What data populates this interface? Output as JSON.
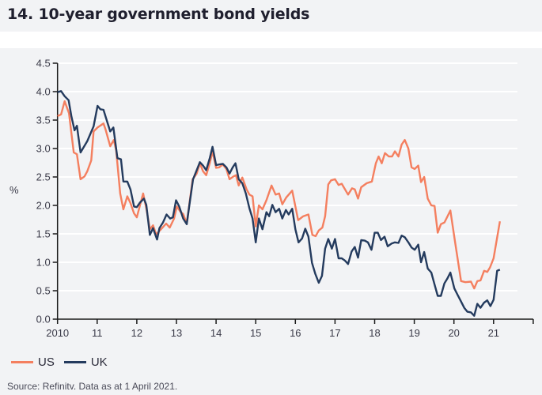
{
  "header": {
    "title": "14. 10-year government bond yields"
  },
  "source": "Source: Refinitv. Data as at 1 April 2021.",
  "chart_data": {
    "type": "line",
    "title": "",
    "ylabel": "%",
    "xlabel": "",
    "xlim": [
      2010,
      2022
    ],
    "ylim": [
      0,
      4.5
    ],
    "yticks": [
      "0.0",
      "0.5",
      "1.0",
      "1.5",
      "2.0",
      "2.5",
      "3.0",
      "3.5",
      "4.0",
      "4.5"
    ],
    "xtick_labels": [
      "2010",
      "11",
      "12",
      "13",
      "14",
      "15",
      "16",
      "17",
      "18",
      "19",
      "20",
      "21"
    ],
    "grid": "horizontal",
    "legend_position": "bottom-left",
    "series": [
      {
        "name": "US",
        "color": "#f47f5f",
        "points": [
          [
            2010.0,
            3.57
          ],
          [
            2010.09,
            3.6
          ],
          [
            2010.18,
            3.83
          ],
          [
            2010.29,
            3.62
          ],
          [
            2010.41,
            2.93
          ],
          [
            2010.49,
            2.9
          ],
          [
            2010.58,
            2.46
          ],
          [
            2010.68,
            2.51
          ],
          [
            2010.75,
            2.6
          ],
          [
            2010.85,
            2.79
          ],
          [
            2010.91,
            3.3
          ],
          [
            2011.01,
            3.37
          ],
          [
            2011.16,
            3.44
          ],
          [
            2011.21,
            3.34
          ],
          [
            2011.33,
            3.04
          ],
          [
            2011.42,
            3.15
          ],
          [
            2011.48,
            2.97
          ],
          [
            2011.58,
            2.21
          ],
          [
            2011.66,
            1.93
          ],
          [
            2011.76,
            2.16
          ],
          [
            2011.84,
            2.04
          ],
          [
            2011.93,
            1.86
          ],
          [
            2012.0,
            1.79
          ],
          [
            2012.08,
            2.0
          ],
          [
            2012.16,
            2.21
          ],
          [
            2012.24,
            1.95
          ],
          [
            2012.33,
            1.58
          ],
          [
            2012.41,
            1.65
          ],
          [
            2012.49,
            1.49
          ],
          [
            2012.61,
            1.58
          ],
          [
            2012.74,
            1.68
          ],
          [
            2012.83,
            1.61
          ],
          [
            2012.94,
            1.77
          ],
          [
            2013.01,
            1.98
          ],
          [
            2013.11,
            1.88
          ],
          [
            2013.17,
            1.85
          ],
          [
            2013.26,
            1.68
          ],
          [
            2013.41,
            2.46
          ],
          [
            2013.51,
            2.56
          ],
          [
            2013.59,
            2.74
          ],
          [
            2013.67,
            2.6
          ],
          [
            2013.75,
            2.53
          ],
          [
            2013.84,
            2.74
          ],
          [
            2013.91,
            2.95
          ],
          [
            2014.0,
            2.66
          ],
          [
            2014.08,
            2.67
          ],
          [
            2014.17,
            2.72
          ],
          [
            2014.26,
            2.64
          ],
          [
            2014.34,
            2.46
          ],
          [
            2014.44,
            2.51
          ],
          [
            2014.5,
            2.53
          ],
          [
            2014.57,
            2.35
          ],
          [
            2014.66,
            2.49
          ],
          [
            2014.77,
            2.28
          ],
          [
            2014.84,
            2.19
          ],
          [
            2014.92,
            2.16
          ],
          [
            2015.0,
            1.63
          ],
          [
            2015.08,
            2.0
          ],
          [
            2015.17,
            1.93
          ],
          [
            2015.27,
            2.09
          ],
          [
            2015.4,
            2.35
          ],
          [
            2015.5,
            2.19
          ],
          [
            2015.59,
            2.21
          ],
          [
            2015.67,
            2.02
          ],
          [
            2015.77,
            2.14
          ],
          [
            2015.92,
            2.26
          ],
          [
            2016.07,
            1.74
          ],
          [
            2016.2,
            1.81
          ],
          [
            2016.33,
            1.84
          ],
          [
            2016.43,
            1.48
          ],
          [
            2016.51,
            1.46
          ],
          [
            2016.59,
            1.56
          ],
          [
            2016.68,
            1.61
          ],
          [
            2016.75,
            1.81
          ],
          [
            2016.83,
            2.37
          ],
          [
            2016.9,
            2.44
          ],
          [
            2017.0,
            2.46
          ],
          [
            2017.09,
            2.36
          ],
          [
            2017.17,
            2.38
          ],
          [
            2017.33,
            2.19
          ],
          [
            2017.43,
            2.3
          ],
          [
            2017.5,
            2.28
          ],
          [
            2017.58,
            2.12
          ],
          [
            2017.66,
            2.32
          ],
          [
            2017.8,
            2.39
          ],
          [
            2017.93,
            2.42
          ],
          [
            2018.03,
            2.74
          ],
          [
            2018.1,
            2.86
          ],
          [
            2018.18,
            2.74
          ],
          [
            2018.26,
            2.92
          ],
          [
            2018.36,
            2.86
          ],
          [
            2018.44,
            2.86
          ],
          [
            2018.51,
            2.95
          ],
          [
            2018.6,
            2.86
          ],
          [
            2018.68,
            3.07
          ],
          [
            2018.76,
            3.15
          ],
          [
            2018.85,
            3.0
          ],
          [
            2018.93,
            2.67
          ],
          [
            2019.01,
            2.64
          ],
          [
            2019.1,
            2.7
          ],
          [
            2019.17,
            2.41
          ],
          [
            2019.25,
            2.5
          ],
          [
            2019.34,
            2.12
          ],
          [
            2019.43,
            2.0
          ],
          [
            2019.51,
            1.99
          ],
          [
            2019.59,
            1.52
          ],
          [
            2019.67,
            1.67
          ],
          [
            2019.76,
            1.7
          ],
          [
            2019.91,
            1.91
          ],
          [
            2020.03,
            1.35
          ],
          [
            2020.18,
            0.67
          ],
          [
            2020.29,
            0.65
          ],
          [
            2020.43,
            0.66
          ],
          [
            2020.51,
            0.54
          ],
          [
            2020.59,
            0.67
          ],
          [
            2020.67,
            0.68
          ],
          [
            2020.76,
            0.85
          ],
          [
            2020.84,
            0.83
          ],
          [
            2020.91,
            0.91
          ],
          [
            2021.0,
            1.07
          ],
          [
            2021.16,
            1.72
          ]
        ]
      },
      {
        "name": "UK",
        "color": "#243b5e",
        "points": [
          [
            2010.0,
            3.99
          ],
          [
            2010.09,
            4.01
          ],
          [
            2010.18,
            3.92
          ],
          [
            2010.28,
            3.85
          ],
          [
            2010.35,
            3.57
          ],
          [
            2010.43,
            3.32
          ],
          [
            2010.49,
            3.4
          ],
          [
            2010.58,
            2.93
          ],
          [
            2010.75,
            3.13
          ],
          [
            2010.91,
            3.39
          ],
          [
            2011.01,
            3.75
          ],
          [
            2011.08,
            3.69
          ],
          [
            2011.16,
            3.68
          ],
          [
            2011.24,
            3.5
          ],
          [
            2011.33,
            3.3
          ],
          [
            2011.41,
            3.37
          ],
          [
            2011.51,
            2.83
          ],
          [
            2011.6,
            2.81
          ],
          [
            2011.66,
            2.42
          ],
          [
            2011.76,
            2.42
          ],
          [
            2011.84,
            2.28
          ],
          [
            2011.93,
            1.98
          ],
          [
            2012.0,
            1.97
          ],
          [
            2012.08,
            2.05
          ],
          [
            2012.18,
            2.12
          ],
          [
            2012.24,
            2.01
          ],
          [
            2012.33,
            1.48
          ],
          [
            2012.41,
            1.6
          ],
          [
            2012.51,
            1.4
          ],
          [
            2012.57,
            1.6
          ],
          [
            2012.66,
            1.7
          ],
          [
            2012.75,
            1.84
          ],
          [
            2012.84,
            1.77
          ],
          [
            2012.91,
            1.79
          ],
          [
            2012.99,
            2.09
          ],
          [
            2013.07,
            1.98
          ],
          [
            2013.17,
            1.77
          ],
          [
            2013.26,
            1.67
          ],
          [
            2013.33,
            2.02
          ],
          [
            2013.42,
            2.46
          ],
          [
            2013.51,
            2.62
          ],
          [
            2013.59,
            2.76
          ],
          [
            2013.67,
            2.7
          ],
          [
            2013.75,
            2.62
          ],
          [
            2013.84,
            2.83
          ],
          [
            2013.91,
            3.03
          ],
          [
            2014.0,
            2.71
          ],
          [
            2014.08,
            2.72
          ],
          [
            2014.17,
            2.73
          ],
          [
            2014.26,
            2.67
          ],
          [
            2014.34,
            2.56
          ],
          [
            2014.42,
            2.67
          ],
          [
            2014.49,
            2.74
          ],
          [
            2014.57,
            2.46
          ],
          [
            2014.66,
            2.39
          ],
          [
            2014.75,
            2.21
          ],
          [
            2014.84,
            1.95
          ],
          [
            2014.92,
            1.77
          ],
          [
            2015.0,
            1.35
          ],
          [
            2015.08,
            1.77
          ],
          [
            2015.17,
            1.58
          ],
          [
            2015.27,
            1.88
          ],
          [
            2015.34,
            1.81
          ],
          [
            2015.42,
            2.01
          ],
          [
            2015.5,
            1.88
          ],
          [
            2015.59,
            1.94
          ],
          [
            2015.67,
            1.77
          ],
          [
            2015.76,
            1.92
          ],
          [
            2015.83,
            1.84
          ],
          [
            2015.92,
            1.94
          ],
          [
            2016.0,
            1.58
          ],
          [
            2016.08,
            1.35
          ],
          [
            2016.17,
            1.42
          ],
          [
            2016.25,
            1.59
          ],
          [
            2016.33,
            1.45
          ],
          [
            2016.42,
            0.99
          ],
          [
            2016.5,
            0.8
          ],
          [
            2016.59,
            0.64
          ],
          [
            2016.67,
            0.76
          ],
          [
            2016.75,
            1.24
          ],
          [
            2016.83,
            1.41
          ],
          [
            2016.92,
            1.24
          ],
          [
            2017.0,
            1.41
          ],
          [
            2017.09,
            1.07
          ],
          [
            2017.17,
            1.07
          ],
          [
            2017.25,
            1.03
          ],
          [
            2017.33,
            0.97
          ],
          [
            2017.42,
            1.19
          ],
          [
            2017.5,
            1.27
          ],
          [
            2017.58,
            1.08
          ],
          [
            2017.66,
            1.39
          ],
          [
            2017.75,
            1.38
          ],
          [
            2017.83,
            1.35
          ],
          [
            2017.92,
            1.22
          ],
          [
            2018.0,
            1.52
          ],
          [
            2018.08,
            1.52
          ],
          [
            2018.16,
            1.39
          ],
          [
            2018.25,
            1.45
          ],
          [
            2018.33,
            1.28
          ],
          [
            2018.43,
            1.33
          ],
          [
            2018.51,
            1.35
          ],
          [
            2018.6,
            1.34
          ],
          [
            2018.68,
            1.47
          ],
          [
            2018.76,
            1.44
          ],
          [
            2018.85,
            1.35
          ],
          [
            2018.93,
            1.26
          ],
          [
            2019.01,
            1.22
          ],
          [
            2019.1,
            1.31
          ],
          [
            2019.17,
            1.0
          ],
          [
            2019.25,
            1.18
          ],
          [
            2019.34,
            0.89
          ],
          [
            2019.43,
            0.82
          ],
          [
            2019.51,
            0.61
          ],
          [
            2019.59,
            0.41
          ],
          [
            2019.67,
            0.41
          ],
          [
            2019.76,
            0.63
          ],
          [
            2019.83,
            0.71
          ],
          [
            2019.91,
            0.82
          ],
          [
            2020.01,
            0.54
          ],
          [
            2020.09,
            0.43
          ],
          [
            2020.18,
            0.31
          ],
          [
            2020.26,
            0.2
          ],
          [
            2020.34,
            0.13
          ],
          [
            2020.43,
            0.12
          ],
          [
            2020.51,
            0.06
          ],
          [
            2020.59,
            0.27
          ],
          [
            2020.67,
            0.2
          ],
          [
            2020.76,
            0.29
          ],
          [
            2020.84,
            0.33
          ],
          [
            2020.92,
            0.23
          ],
          [
            2021.0,
            0.34
          ],
          [
            2021.09,
            0.85
          ],
          [
            2021.16,
            0.87
          ]
        ]
      }
    ]
  }
}
